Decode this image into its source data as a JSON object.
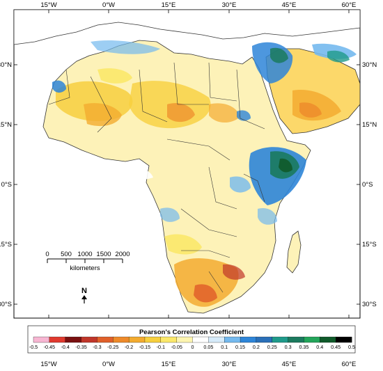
{
  "axes": {
    "top_ticks": [
      "15°W",
      "0°W",
      "15°E",
      "30°E",
      "45°E",
      "60°E"
    ],
    "bottom_ticks": [
      "15°W",
      "0°W",
      "15°E",
      "30°E",
      "45°E",
      "60°E"
    ],
    "left_ticks": [
      "30°N",
      "15°N",
      "0°S",
      "15°S",
      "30°S"
    ],
    "right_ticks": [
      "30°N",
      "15°N",
      "0°S",
      "15°S",
      "30°S"
    ]
  },
  "scale_bar": {
    "labels": [
      "0",
      "500",
      "1000",
      "1500",
      "2000"
    ],
    "unit": "kilometers"
  },
  "north_arrow": {
    "label": "N"
  },
  "colorbar": {
    "title": "Pearson's Correlation Coefficient",
    "labels": [
      "-0.5",
      "-0.45",
      "-0.4",
      "-0.35",
      "-0.3",
      "-0.25",
      "-0.2",
      "-0.15",
      "-0.1",
      "-0.05",
      "0",
      "0.05",
      "0.1",
      "0.15",
      "0.2",
      "0.25",
      "0.3",
      "0.35",
      "0.4",
      "0.45",
      "0.5"
    ],
    "colors": [
      "#f7b6d2",
      "#e03a2f",
      "#7a1010",
      "#c0362a",
      "#e0602a",
      "#ee8a2a",
      "#f3ab30",
      "#f7cf3e",
      "#fbe86a",
      "#fdf5b0",
      "#ffffff",
      "#d6ebfa",
      "#74b9ee",
      "#2e85d8",
      "#2a6fb8",
      "#1f9a8a",
      "#1b7a5e",
      "#23a55a",
      "#0f5a2a",
      "#000000"
    ]
  }
}
